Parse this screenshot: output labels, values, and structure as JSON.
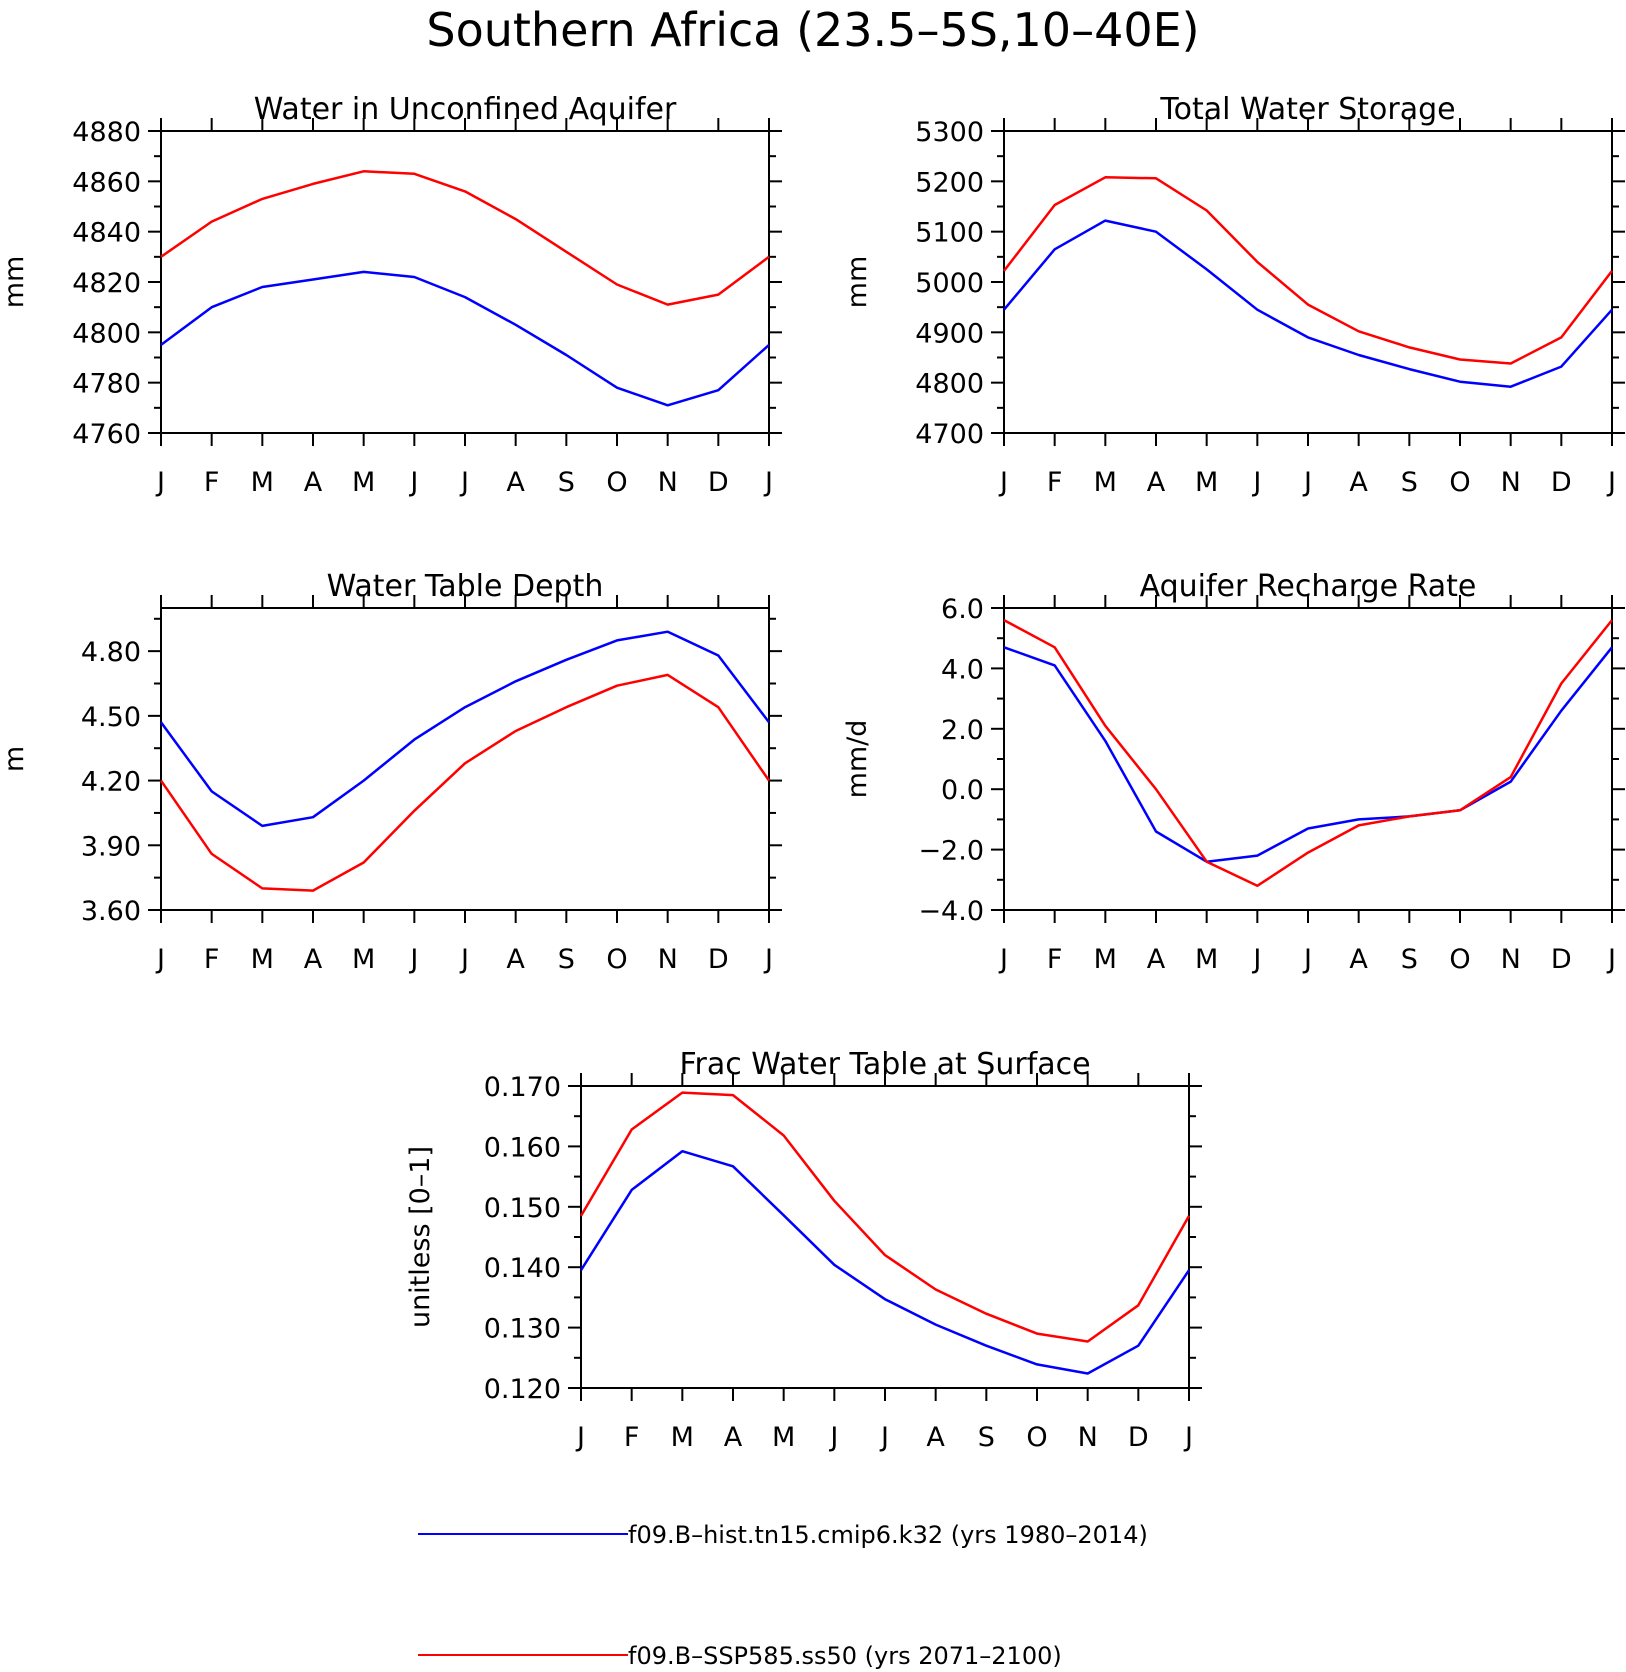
{
  "main_title": "Southern Africa (23.5–5S,10–40E)",
  "colors": {
    "hist": "#0000ff",
    "ssp": "#ff0000",
    "axis": "#000000"
  },
  "legend": [
    {
      "label": "f09.B–hist.tn15.cmip6.k32 (yrs 1980–2014)",
      "color": "#0000ff"
    },
    {
      "label": "f09.B–SSP585.ss50 (yrs 2071–2100)",
      "color": "#ff0000"
    }
  ],
  "chart_data": [
    {
      "type": "line",
      "title": "Water in Unconfined Aquifer",
      "ylabel": "mm",
      "categories": [
        "J",
        "F",
        "M",
        "A",
        "M",
        "J",
        "J",
        "A",
        "S",
        "O",
        "N",
        "D",
        "J"
      ],
      "ylim": [
        4760,
        4880
      ],
      "yticks": [
        "4760",
        "4780",
        "4800",
        "4820",
        "4840",
        "4860",
        "4880"
      ],
      "series": [
        {
          "values": [
            4795,
            4810,
            4818,
            4821,
            4824,
            4822,
            4814,
            4803,
            4791,
            4778,
            4771,
            4777,
            4795
          ]
        },
        {
          "values": [
            4830,
            4844,
            4853,
            4859,
            4864,
            4863,
            4856,
            4845,
            4832,
            4819,
            4811,
            4815,
            4830
          ]
        }
      ]
    },
    {
      "type": "line",
      "title": "Total Water Storage",
      "ylabel": "mm",
      "categories": [
        "J",
        "F",
        "M",
        "A",
        "M",
        "J",
        "J",
        "A",
        "S",
        "O",
        "N",
        "D",
        "J"
      ],
      "ylim": [
        4700,
        5300
      ],
      "yticks": [
        "4700",
        "4800",
        "4900",
        "5000",
        "5100",
        "5200",
        "5300"
      ],
      "series": [
        {
          "values": [
            4945,
            5065,
            5122,
            5100,
            5025,
            4945,
            4890,
            4855,
            4827,
            4802,
            4792,
            4832,
            4945
          ]
        },
        {
          "values": [
            5022,
            5153,
            5208,
            5206,
            5142,
            5040,
            4955,
            4902,
            4870,
            4846,
            4838,
            4890,
            5022
          ]
        }
      ]
    },
    {
      "type": "line",
      "title": "Water Table Depth",
      "ylabel": "m",
      "categories": [
        "J",
        "F",
        "M",
        "A",
        "M",
        "J",
        "J",
        "A",
        "S",
        "O",
        "N",
        "D",
        "J"
      ],
      "ylim": [
        3.6,
        5.0
      ],
      "yticks": [
        "3.60",
        "3.90",
        "4.20",
        "4.50",
        "4.80"
      ],
      "ytick_values": [
        3.6,
        3.9,
        4.2,
        4.5,
        4.8
      ],
      "series": [
        {
          "values": [
            4.47,
            4.15,
            3.99,
            4.03,
            4.2,
            4.39,
            4.54,
            4.66,
            4.76,
            4.85,
            4.89,
            4.78,
            4.47
          ]
        },
        {
          "values": [
            4.2,
            3.86,
            3.7,
            3.69,
            3.82,
            4.06,
            4.28,
            4.43,
            4.54,
            4.64,
            4.69,
            4.54,
            4.2
          ]
        }
      ]
    },
    {
      "type": "line",
      "title": "Aquifer Recharge Rate",
      "ylabel": "mm/d",
      "categories": [
        "J",
        "F",
        "M",
        "A",
        "M",
        "J",
        "J",
        "A",
        "S",
        "O",
        "N",
        "D",
        "J"
      ],
      "ylim": [
        -4.0,
        6.0
      ],
      "yticks": [
        "−4.0",
        "−2.0",
        "0.0",
        "2.0",
        "4.0",
        "6.0"
      ],
      "ytick_values": [
        -4.0,
        -2.0,
        0.0,
        2.0,
        4.0,
        6.0
      ],
      "series": [
        {
          "values": [
            4.7,
            4.1,
            1.6,
            -1.4,
            -2.4,
            -2.2,
            -1.3,
            -1.0,
            -0.9,
            -0.7,
            0.25,
            2.6,
            4.7
          ]
        },
        {
          "values": [
            5.6,
            4.7,
            2.1,
            0.0,
            -2.4,
            -3.2,
            -2.1,
            -1.2,
            -0.9,
            -0.7,
            0.4,
            3.5,
            5.6
          ]
        }
      ]
    },
    {
      "type": "line",
      "title": "Frac Water Table at Surface",
      "ylabel": "unitless [0–1]",
      "categories": [
        "J",
        "F",
        "M",
        "A",
        "M",
        "J",
        "J",
        "A",
        "S",
        "O",
        "N",
        "D",
        "J"
      ],
      "ylim": [
        0.12,
        0.17
      ],
      "yticks": [
        "0.120",
        "0.130",
        "0.140",
        "0.150",
        "0.160",
        "0.170"
      ],
      "series": [
        {
          "values": [
            0.1395,
            0.1528,
            0.1592,
            0.1567,
            0.1486,
            0.1404,
            0.1347,
            0.1305,
            0.127,
            0.1239,
            0.1224,
            0.127,
            0.1395
          ]
        },
        {
          "values": [
            0.1485,
            0.1628,
            0.1689,
            0.1685,
            0.1618,
            0.151,
            0.142,
            0.1363,
            0.1323,
            0.129,
            0.1277,
            0.1337,
            0.1485
          ]
        }
      ]
    }
  ]
}
